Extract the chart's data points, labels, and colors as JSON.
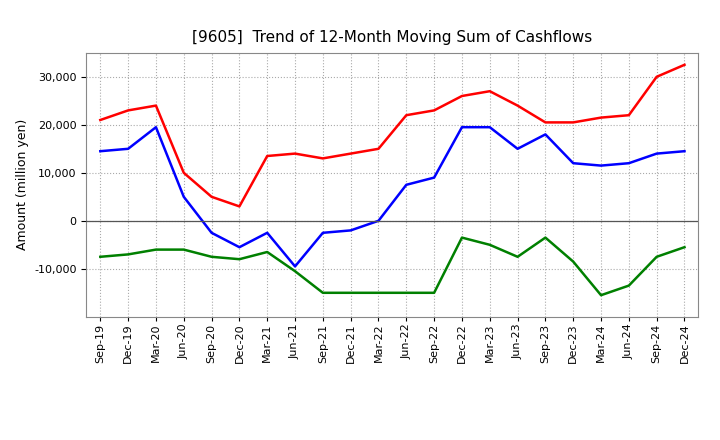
{
  "title": "[9605]  Trend of 12-Month Moving Sum of Cashflows",
  "ylabel": "Amount (million yen)",
  "x_labels": [
    "Sep-19",
    "Dec-19",
    "Mar-20",
    "Jun-20",
    "Sep-20",
    "Dec-20",
    "Mar-21",
    "Jun-21",
    "Sep-21",
    "Dec-21",
    "Mar-22",
    "Jun-22",
    "Sep-22",
    "Dec-22",
    "Mar-23",
    "Jun-23",
    "Sep-23",
    "Dec-23",
    "Mar-24",
    "Jun-24",
    "Sep-24",
    "Dec-24"
  ],
  "operating_cashflow": [
    21000,
    23000,
    24000,
    10000,
    5000,
    3000,
    13500,
    14000,
    13000,
    14000,
    15000,
    22000,
    23000,
    26000,
    27000,
    24000,
    20500,
    20500,
    21500,
    22000,
    30000,
    32500
  ],
  "investing_cashflow": [
    -7500,
    -7000,
    -6000,
    -6000,
    -7500,
    -8000,
    -6500,
    -10500,
    -15000,
    -15000,
    -15000,
    -15000,
    -15000,
    -3500,
    -5000,
    -7500,
    -3500,
    -8500,
    -15500,
    -13500,
    -7500,
    -5500
  ],
  "free_cashflow": [
    14500,
    15000,
    19500,
    5000,
    -2500,
    -5500,
    -2500,
    -9500,
    -2500,
    -2000,
    0,
    7500,
    9000,
    19500,
    19500,
    15000,
    18000,
    12000,
    11500,
    12000,
    14000,
    14500
  ],
  "ylim": [
    -20000,
    35000
  ],
  "yticks": [
    -10000,
    0,
    10000,
    20000,
    30000
  ],
  "operating_color": "#ff0000",
  "investing_color": "#008000",
  "free_color": "#0000ff",
  "background_color": "#ffffff",
  "grid_color": "#aaaaaa",
  "title_fontsize": 11,
  "label_fontsize": 9,
  "tick_fontsize": 8
}
